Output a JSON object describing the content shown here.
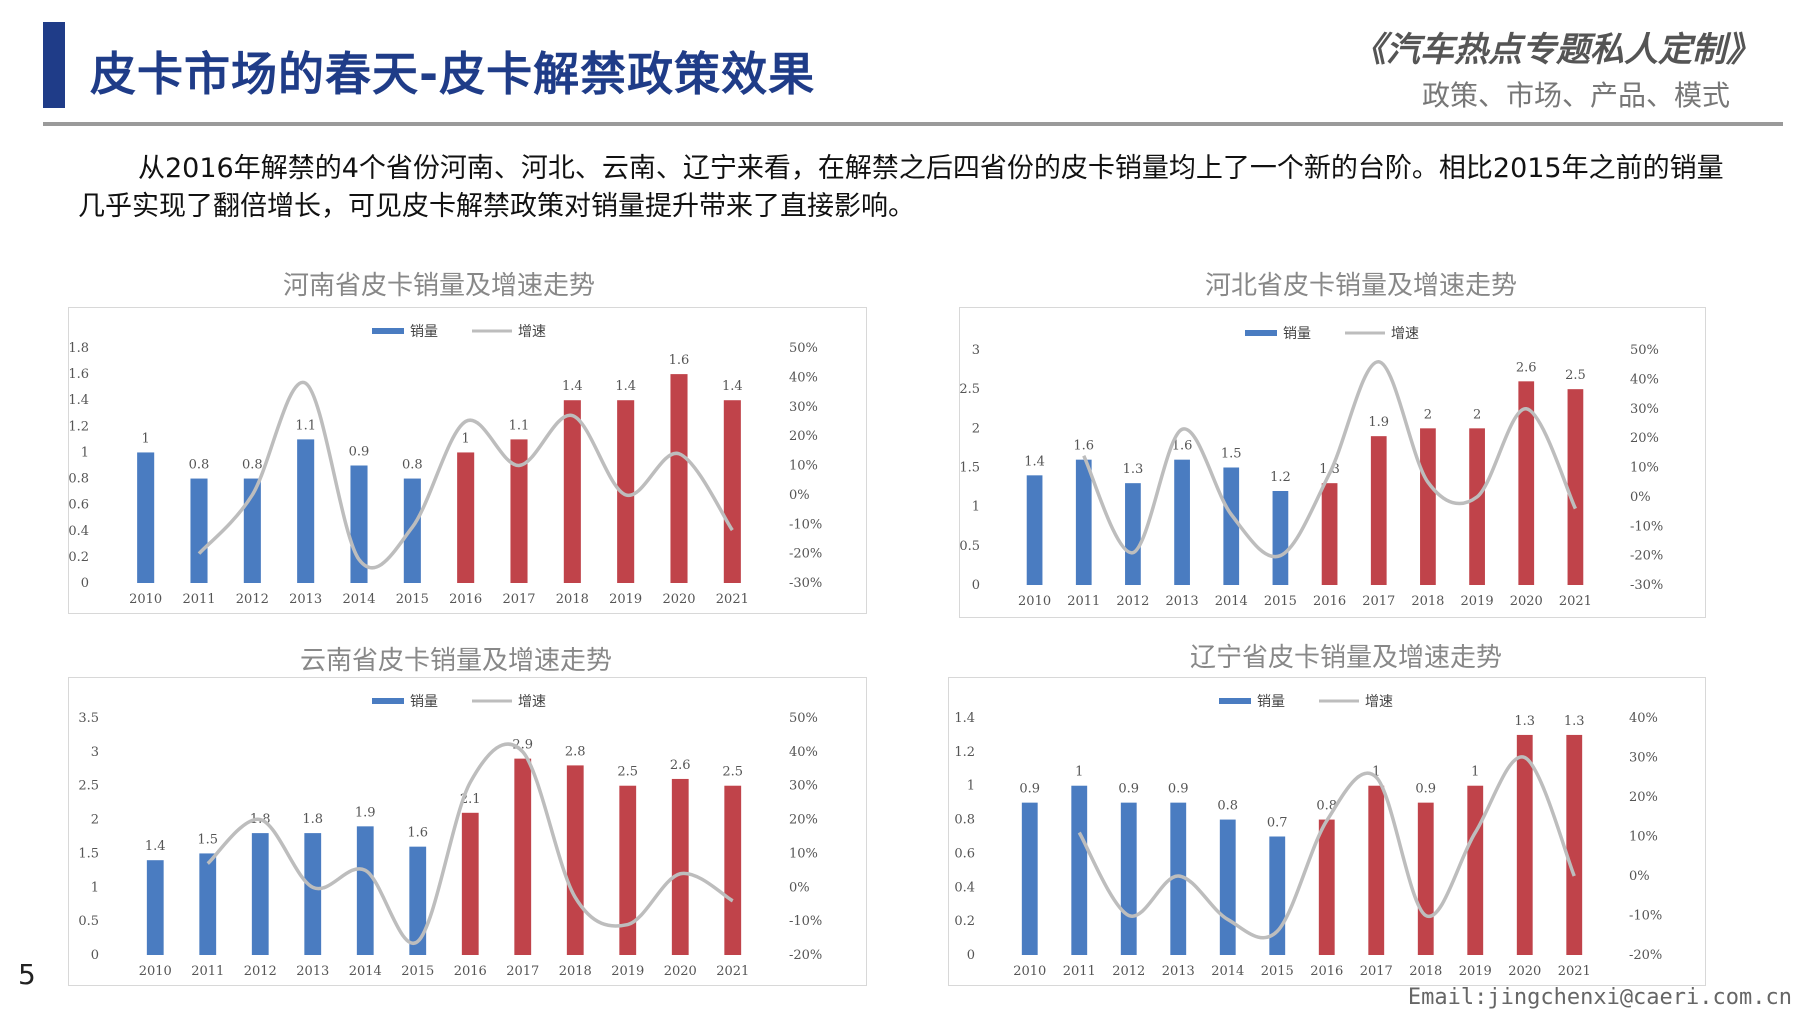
{
  "header": {
    "title": "皮卡市场的春天-皮卡解禁政策效果",
    "series_title": "《汽车热点专题私人定制》",
    "series_subtitle": "政策、市场、产品、模式"
  },
  "intro_text": "从2016年解禁的4个省份河南、河北、云南、辽宁来看，在解禁之后四省份的皮卡销量均上了一个新的台阶。相比2015年之前的销量几乎实现了翻倍增长，可见皮卡解禁政策对销量提升带来了直接影响。",
  "footer": {
    "page_number": "5",
    "email": "Email:jingchenxi@caeri.com.cn"
  },
  "colors": {
    "pre_bar": "#4a7cc1",
    "post_bar": "#c0434a",
    "line": "#bdbdbd",
    "title_blue": "#1f3c88"
  },
  "chart_data": [
    {
      "type": "bar",
      "title": "河南省皮卡销量及增速走势",
      "legend": [
        "销量",
        "增速"
      ],
      "legend_position": "top-center",
      "categories": [
        "2010",
        "2011",
        "2012",
        "2013",
        "2014",
        "2015",
        "2016",
        "2017",
        "2018",
        "2019",
        "2020",
        "2021"
      ],
      "series": [
        {
          "name": "销量",
          "type": "bar",
          "axis": "left",
          "values": [
            1,
            0.8,
            0.8,
            1.1,
            0.9,
            0.8,
            1,
            1.1,
            1.4,
            1.4,
            1.6,
            1.4
          ]
        },
        {
          "name": "增速",
          "type": "line",
          "axis": "right",
          "values": [
            null,
            -20,
            0,
            38,
            -22,
            -11,
            25,
            10,
            27,
            0,
            14,
            -12
          ]
        }
      ],
      "y_left": {
        "min": 0,
        "max": 1.8,
        "ticks": [
          "0",
          "0.2",
          "0.4",
          "0.6",
          "0.8",
          "1",
          "1.2",
          "1.4",
          "1.6",
          "1.8"
        ]
      },
      "y_right": {
        "min": -30,
        "max": 50,
        "ticks": [
          "-30%",
          "-20%",
          "-10%",
          "0%",
          "10%",
          "20%",
          "30%",
          "40%",
          "50%"
        ]
      },
      "highlight_from": "2016"
    },
    {
      "type": "bar",
      "title": "河北省皮卡销量及增速走势",
      "legend": [
        "销量",
        "增速"
      ],
      "legend_position": "top-center",
      "categories": [
        "2010",
        "2011",
        "2012",
        "2013",
        "2014",
        "2015",
        "2016",
        "2017",
        "2018",
        "2019",
        "2020",
        "2021"
      ],
      "series": [
        {
          "name": "销量",
          "type": "bar",
          "axis": "left",
          "values": [
            1.4,
            1.6,
            1.3,
            1.6,
            1.5,
            1.2,
            1.3,
            1.9,
            2,
            2,
            2.6,
            2.5
          ]
        },
        {
          "name": "增速",
          "type": "line",
          "axis": "right",
          "values": [
            null,
            14,
            -19,
            23,
            -6,
            -20,
            8,
            46,
            5,
            0,
            30,
            -4
          ]
        }
      ],
      "y_left": {
        "min": 0,
        "max": 3,
        "ticks": [
          "0",
          "0.5",
          "1",
          "1.5",
          "2",
          "2.5",
          "3"
        ]
      },
      "y_right": {
        "min": -30,
        "max": 50,
        "ticks": [
          "-30%",
          "-20%",
          "-10%",
          "0%",
          "10%",
          "20%",
          "30%",
          "40%",
          "50%"
        ]
      },
      "highlight_from": "2016"
    },
    {
      "type": "bar",
      "title": "云南省皮卡销量及增速走势",
      "legend": [
        "销量",
        "增速"
      ],
      "legend_position": "top-center",
      "categories": [
        "2010",
        "2011",
        "2012",
        "2013",
        "2014",
        "2015",
        "2016",
        "2017",
        "2018",
        "2019",
        "2020",
        "2021"
      ],
      "series": [
        {
          "name": "销量",
          "type": "bar",
          "axis": "left",
          "values": [
            1.4,
            1.5,
            1.8,
            1.8,
            1.9,
            1.6,
            2.1,
            2.9,
            2.8,
            2.5,
            2.6,
            2.5
          ]
        },
        {
          "name": "增速",
          "type": "line",
          "axis": "right",
          "values": [
            null,
            7,
            20,
            0,
            5,
            -16,
            31,
            40,
            -3,
            -11,
            4,
            -4
          ]
        }
      ],
      "y_left": {
        "min": 0,
        "max": 3.5,
        "ticks": [
          "0",
          "0.5",
          "1",
          "1.5",
          "2",
          "2.5",
          "3",
          "3.5"
        ]
      },
      "y_right": {
        "min": -20,
        "max": 50,
        "ticks": [
          "-20%",
          "-10%",
          "0%",
          "10%",
          "20%",
          "30%",
          "40%",
          "50%"
        ]
      },
      "highlight_from": "2016"
    },
    {
      "type": "bar",
      "title": "辽宁省皮卡销量及增速走势",
      "legend": [
        "销量",
        "增速"
      ],
      "legend_position": "top-center",
      "categories": [
        "2010",
        "2011",
        "2012",
        "2013",
        "2014",
        "2015",
        "2016",
        "2017",
        "2018",
        "2019",
        "2020",
        "2021"
      ],
      "series": [
        {
          "name": "销量",
          "type": "bar",
          "axis": "left",
          "values": [
            0.9,
            1,
            0.9,
            0.9,
            0.8,
            0.7,
            0.8,
            1,
            0.9,
            1,
            1.3,
            1.3
          ]
        },
        {
          "name": "增速",
          "type": "line",
          "axis": "right",
          "values": [
            null,
            11,
            -10,
            0,
            -11,
            -14,
            14,
            25,
            -10,
            11,
            30,
            0
          ]
        }
      ],
      "y_left": {
        "min": 0,
        "max": 1.4,
        "ticks": [
          "0",
          "0.2",
          "0.4",
          "0.6",
          "0.8",
          "1",
          "1.2",
          "1.4"
        ]
      },
      "y_right": {
        "min": -20,
        "max": 40,
        "ticks": [
          "-20%",
          "-10%",
          "0%",
          "10%",
          "20%",
          "30%",
          "40%"
        ]
      },
      "highlight_from": "2016"
    }
  ]
}
